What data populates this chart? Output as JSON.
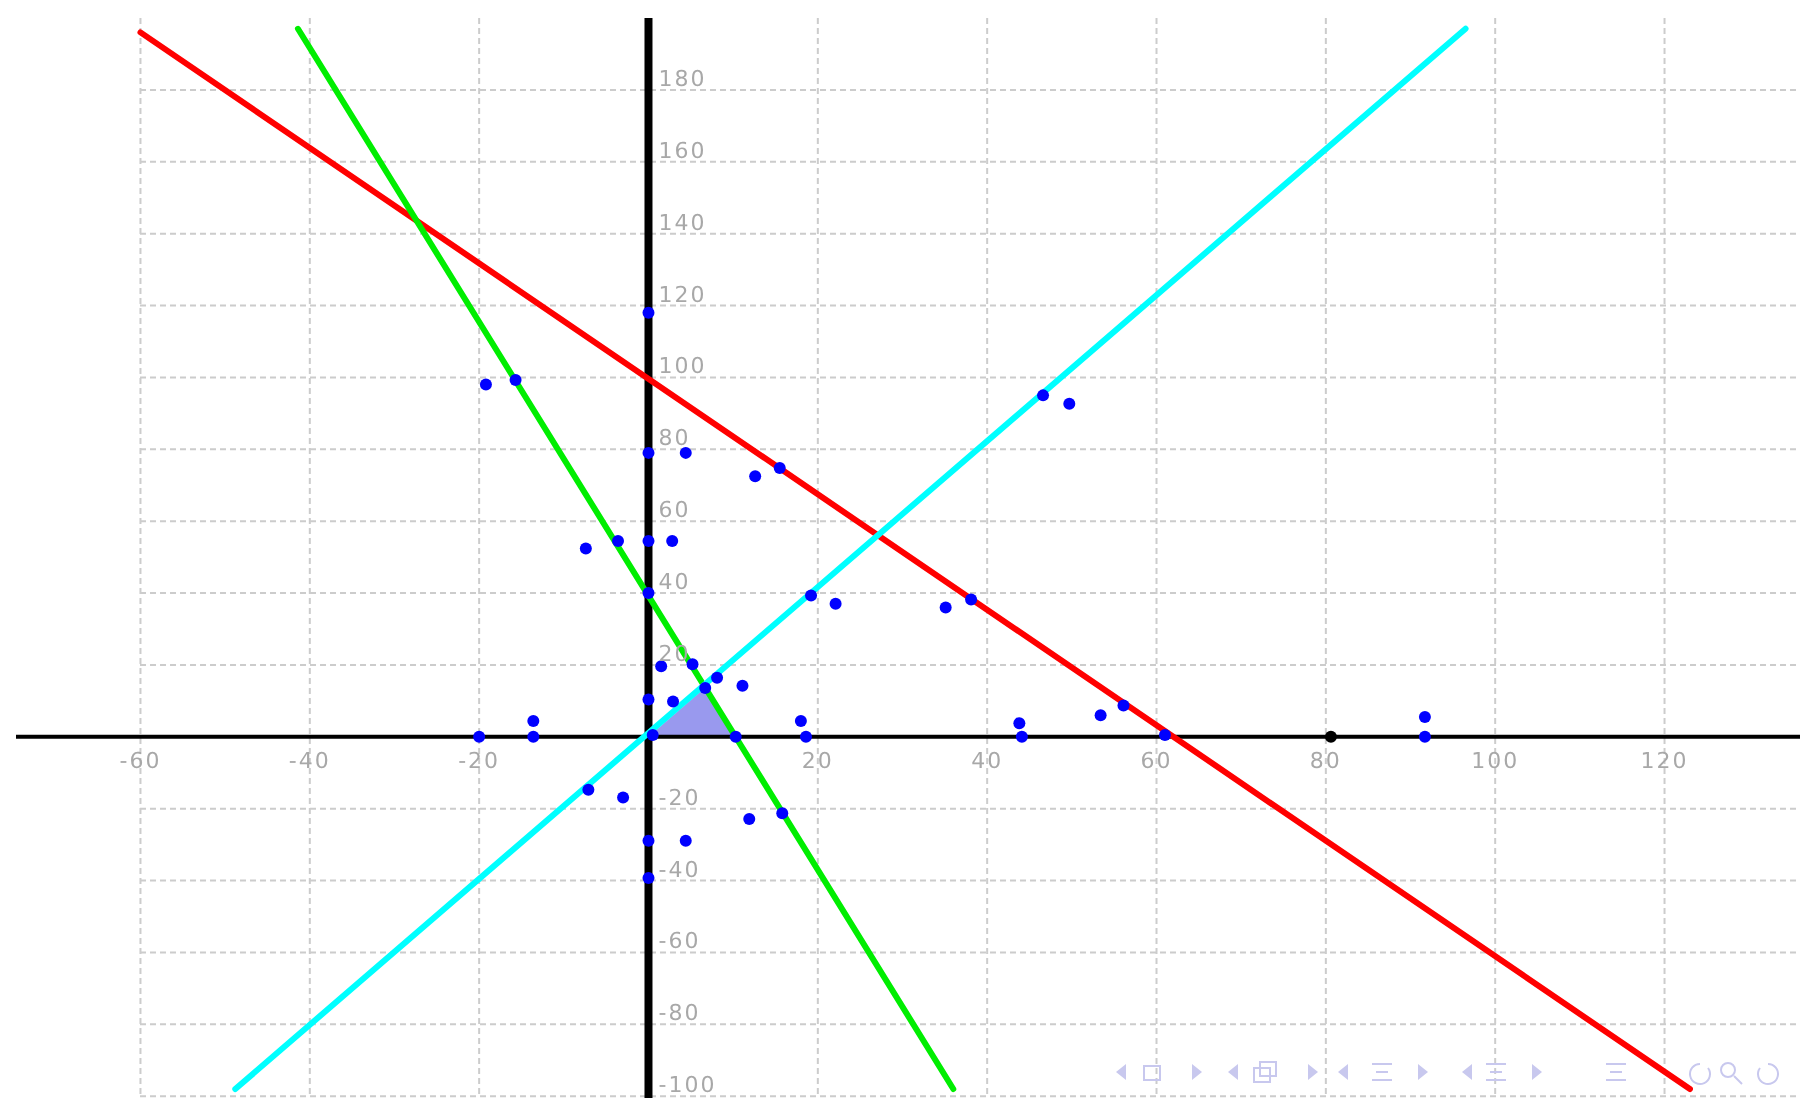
{
  "chart_data": {
    "type": "line",
    "xlim": [
      -74.7,
      136
    ],
    "ylim": [
      -100.5,
      200
    ],
    "xticks": [
      -60,
      -40,
      -20,
      20,
      40,
      60,
      80,
      100,
      120
    ],
    "yticks": [
      -100,
      -80,
      -60,
      -40,
      -20,
      20,
      40,
      60,
      80,
      100,
      120,
      140,
      160,
      180
    ],
    "grid": true,
    "series": [
      {
        "type": "area",
        "color": "#9999ee",
        "x": [
          0,
          6.8,
          10.4
        ],
        "values": [
          0,
          13.9,
          0
        ]
      },
      {
        "color": "#ff0000",
        "x": [
          -60,
          123
        ],
        "values": [
          196,
          -98
        ]
      },
      {
        "color": "#00ee00",
        "x": [
          -41.4,
          36
        ],
        "values": [
          197,
          -98
        ]
      },
      {
        "color": "#00ffff",
        "x": [
          -48.8,
          96.5
        ],
        "values": [
          -98,
          197
        ]
      },
      {
        "type": "scatter",
        "color": "#0000ff",
        "marker": "circle",
        "x": [
          -19.2,
          -15.7,
          0,
          0,
          4.4,
          12.6,
          15.5,
          -7.4,
          -3.6,
          0,
          2.8,
          0,
          46.6,
          49.7,
          19.2,
          22.1,
          1.5,
          5.2,
          8.1,
          11.1,
          6.7,
          0,
          2.9,
          -20,
          -13.6,
          -13.6,
          0.5,
          10.3,
          18,
          18.6,
          -7.1,
          -3,
          11.9,
          15.8,
          0,
          4.4,
          0,
          35.1,
          38.1,
          43.8,
          44.1,
          53.4,
          56.1,
          61,
          91.7,
          91.7
        ],
        "values": [
          98,
          99.3,
          118,
          79,
          79,
          72.5,
          74.8,
          52.4,
          54.5,
          54.5,
          54.5,
          40,
          95,
          92.7,
          39.3,
          37,
          19.6,
          20.2,
          16.4,
          14.2,
          13.6,
          10.4,
          9.8,
          0,
          4.4,
          0,
          0.5,
          0,
          4.4,
          0,
          -14.7,
          -16.9,
          -22.9,
          -21.3,
          -28.9,
          -28.9,
          -39.3,
          36,
          38.2,
          3.8,
          0,
          6,
          8.7,
          0.5,
          5.5,
          0
        ]
      },
      {
        "type": "scatter",
        "color": "#000000",
        "marker": "circle",
        "x": [
          80.6
        ],
        "values": [
          0
        ]
      }
    ]
  }
}
